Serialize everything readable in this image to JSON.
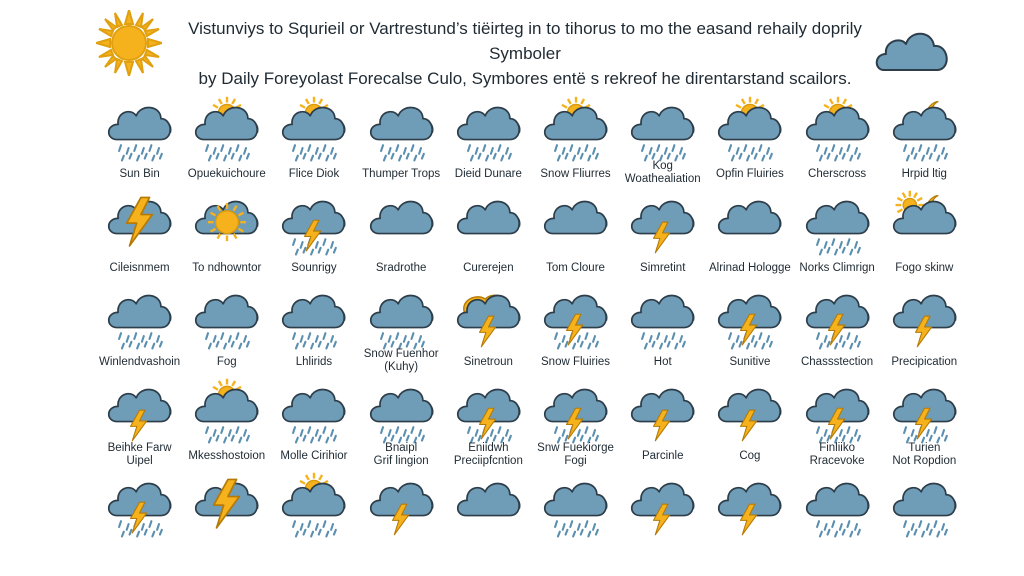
{
  "header": {
    "title_line1": "Vistunviys to Squrieil or Vartrestund’s tiëirteg in to tihorus to mo the easand rehaily doprily Symboler",
    "title_line2": "by Daily Foreyolast Forecalse Culo, Symbores entë s rekreof he direntarstand scailors."
  },
  "colors": {
    "cloud": "#6f9cb6",
    "cloud_stroke": "#2d3e4a",
    "sun": "#f5b21c",
    "rain": "#5b8fb0"
  },
  "rows": [
    [
      {
        "label": "Sun Bin",
        "icon": "cloud-rain-icon"
      },
      {
        "label": "Opuekuichoure",
        "icon": "sun-cloud-rain-icon"
      },
      {
        "label": "Flice Diok",
        "icon": "sun-cloud-rain-icon"
      },
      {
        "label": "Thumper Trops",
        "icon": "cloud-rain-icon"
      },
      {
        "label": "Dieid Dunare",
        "icon": "cloud-rain-icon"
      },
      {
        "label": "Snow Fliurres",
        "icon": "sun-cloud-rain-icon"
      },
      {
        "label": "Kog\nWoathealiation",
        "icon": "cloud-rain-icon"
      },
      {
        "label": "Opfin Fluiries",
        "icon": "sun-cloud-rain-icon"
      },
      {
        "label": "Cherscross",
        "icon": "sun-cloud-rain-icon"
      },
      {
        "label": "Hrpid ltig",
        "icon": "moon-cloud-rain-icon"
      }
    ],
    [
      {
        "label": "Cileisnmem",
        "icon": "lightning-icon"
      },
      {
        "label": "To ndhowntor",
        "icon": "sun-cloud-icon"
      },
      {
        "label": "Sounrigy",
        "icon": "cloud-lightning-rain-icon"
      },
      {
        "label": "Sradrothe",
        "icon": "cloud-icon"
      },
      {
        "label": "Curerejen",
        "icon": "cloud-icon"
      },
      {
        "label": "Tom Cloure",
        "icon": "cloud-icon"
      },
      {
        "label": "Simretint",
        "icon": "cloud-lightning-icon"
      },
      {
        "label": "Alrinad Hologge",
        "icon": "cloud-icon"
      },
      {
        "label": "Norks Climrign",
        "icon": "cloud-rain-icon"
      },
      {
        "label": "Fogo skinw",
        "icon": "moon-sun-cloud-icon"
      }
    ],
    [
      {
        "label": "Winlendvashoin",
        "icon": "cloud-rain-icon"
      },
      {
        "label": "Fog",
        "icon": "cloud-rain-icon"
      },
      {
        "label": "Lhlirids",
        "icon": "cloud-rain-icon"
      },
      {
        "label": "Snow Fuenhor\n(Kuhy)",
        "icon": "cloud-rain-icon"
      },
      {
        "label": "Sinetroun",
        "icon": "sun-cloud-lightning-icon"
      },
      {
        "label": "Snow Fluiries",
        "icon": "cloud-lightning-rain-icon"
      },
      {
        "label": "Hot",
        "icon": "cloud-rain-icon"
      },
      {
        "label": "Sunitive",
        "icon": "cloud-lightning-rain-icon"
      },
      {
        "label": "Chassstection",
        "icon": "cloud-lightning-rain-icon"
      },
      {
        "label": "Precipication",
        "icon": "cloud-lightning-icon"
      }
    ],
    [
      {
        "label": "Beihke Farw\nUipel",
        "icon": "cloud-lightning-icon"
      },
      {
        "label": "Mkesshostoion",
        "icon": "sun-cloud-rain-icon"
      },
      {
        "label": "Molle Cirihior",
        "icon": "cloud-rain-icon"
      },
      {
        "label": "Bnaipl\nGrif lingion",
        "icon": "cloud-rain-icon"
      },
      {
        "label": "Eniidwh\nPreciipfcntion",
        "icon": "cloud-lightning-rain-icon"
      },
      {
        "label": "Snw Fuekiorge\nFogi",
        "icon": "cloud-lightning-rain-icon"
      },
      {
        "label": "Parcinle",
        "icon": "cloud-lightning-icon"
      },
      {
        "label": "Cog",
        "icon": "cloud-lightning-icon"
      },
      {
        "label": "Finliiko\nRracevoke",
        "icon": "cloud-lightning-rain-icon"
      },
      {
        "label": "Turien\nNot Ropdion",
        "icon": "cloud-lightning-rain-icon"
      }
    ],
    [
      {
        "label": "",
        "icon": "cloud-lightning-rain-icon"
      },
      {
        "label": "",
        "icon": "lightning-icon"
      },
      {
        "label": "",
        "icon": "sun-cloud-rain-icon"
      },
      {
        "label": "",
        "icon": "cloud-lightning-icon"
      },
      {
        "label": "",
        "icon": "cloud-icon"
      },
      {
        "label": "",
        "icon": "cloud-rain-icon"
      },
      {
        "label": "",
        "icon": "cloud-lightning-icon"
      },
      {
        "label": "",
        "icon": "cloud-lightning-icon"
      },
      {
        "label": "",
        "icon": "cloud-rain-icon"
      },
      {
        "label": "",
        "icon": "cloud-rain-icon"
      }
    ]
  ]
}
